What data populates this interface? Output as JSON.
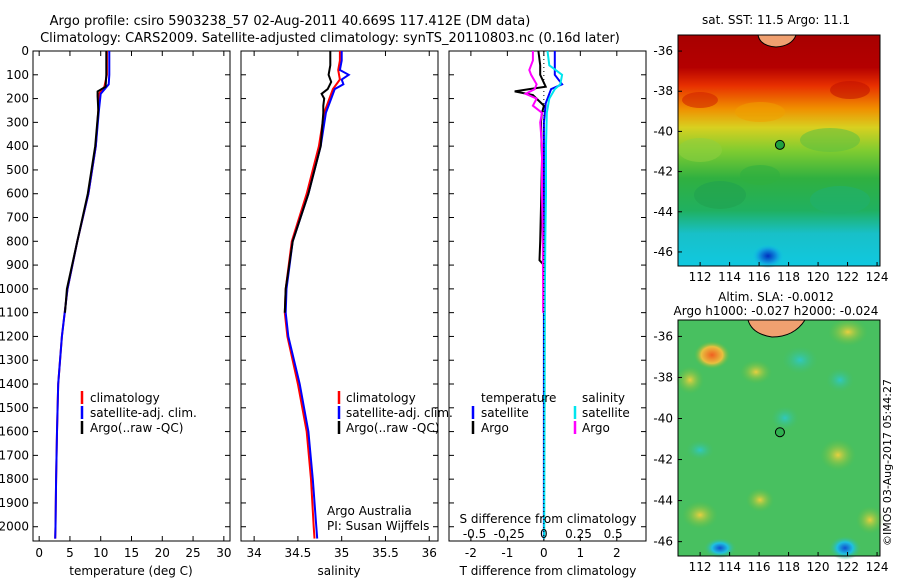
{
  "header": {
    "line1": "Argo profile: csiro 5903238_57 02-Aug-2011 40.669S 117.412E (DM data)",
    "line2": "Climatology: CARS2009. Satellite-adjusted climatology: synTS_20110803.nc (0.16d later)"
  },
  "side_stamp": "©IMOS 03-Aug-2017 05:44:27",
  "colors": {
    "climatology": "#ff0000",
    "satellite": "#0000ff",
    "argo": "#000000",
    "sal_satellite": "#00e5ee",
    "sal_argo": "#ff00ff"
  },
  "chart_data": [
    {
      "type": "line",
      "id": "temperature",
      "xlabel": "temperature (deg C)",
      "xlim": [
        -1,
        31
      ],
      "ylim": [
        2060,
        0
      ],
      "xticks": [
        "0",
        "5",
        "10",
        "15",
        "20",
        "25",
        "30"
      ],
      "xtick_values": [
        0,
        5,
        10,
        15,
        20,
        25,
        30
      ],
      "yticks": [
        "0",
        "100",
        "200",
        "300",
        "400",
        "500",
        "600",
        "700",
        "800",
        "900",
        "1000",
        "1100",
        "1200",
        "1300",
        "1400",
        "1500",
        "1600",
        "1700",
        "1800",
        "1900",
        "2000"
      ],
      "ytick_values": [
        0,
        100,
        200,
        300,
        400,
        500,
        600,
        700,
        800,
        900,
        1000,
        1100,
        1200,
        1300,
        1400,
        1500,
        1600,
        1700,
        1800,
        1900,
        2000
      ],
      "legend": [
        "climatology",
        "satellite-adj. clim.",
        "Argo(..raw -QC)"
      ],
      "series": [
        {
          "name": "climatology",
          "color": "#ff0000",
          "depth": [
            0,
            100,
            150,
            180,
            250,
            400,
            600,
            800,
            1000,
            1200,
            1400,
            1600,
            1800,
            2000,
            2050
          ],
          "values": [
            11.0,
            11.0,
            10.6,
            9.7,
            9.6,
            9.2,
            8.0,
            6.2,
            4.6,
            3.7,
            3.1,
            2.9,
            2.75,
            2.65,
            2.6
          ]
        },
        {
          "name": "satellite-adj. clim.",
          "color": "#0000ff",
          "depth": [
            0,
            100,
            140,
            180,
            250,
            400,
            600,
            800,
            1000,
            1200,
            1400,
            1600,
            1800,
            2000,
            2050
          ],
          "values": [
            11.4,
            11.4,
            11.3,
            10.0,
            9.7,
            9.2,
            8.0,
            6.2,
            4.6,
            3.7,
            3.1,
            2.9,
            2.75,
            2.65,
            2.6
          ]
        },
        {
          "name": "Argo(..raw -QC)",
          "color": "#000000",
          "depth": [
            0,
            100,
            150,
            170,
            190,
            250,
            400,
            600,
            800,
            1000,
            1100
          ],
          "values": [
            10.9,
            10.9,
            10.8,
            9.5,
            9.5,
            9.6,
            9.1,
            7.9,
            6.2,
            4.5,
            4.2
          ]
        }
      ]
    },
    {
      "type": "line",
      "id": "salinity",
      "xlabel": "salinity",
      "xlim": [
        33.85,
        36.1
      ],
      "ylim": [
        2060,
        0
      ],
      "xticks": [
        "34",
        "34.5",
        "35",
        "35.5",
        "36"
      ],
      "xtick_values": [
        34,
        34.5,
        35,
        35.5,
        36
      ],
      "legend": [
        "climatology",
        "satellite-adj. clim.",
        "Argo(..raw -QC)"
      ],
      "annotation": [
        "Argo Australia",
        "PI: Susan Wijffels"
      ],
      "series": [
        {
          "name": "climatology",
          "color": "#ff0000",
          "depth": [
            0,
            40,
            80,
            120,
            160,
            200,
            260,
            400,
            600,
            800,
            1000,
            1100,
            1200,
            1400,
            1600,
            1800,
            2000,
            2050
          ],
          "values": [
            34.98,
            34.98,
            34.96,
            34.98,
            34.9,
            34.86,
            34.8,
            34.74,
            34.6,
            34.43,
            34.36,
            34.35,
            34.38,
            34.5,
            34.6,
            34.65,
            34.68,
            34.69
          ]
        },
        {
          "name": "satellite-adj. clim.",
          "color": "#0000ff",
          "depth": [
            0,
            40,
            80,
            100,
            120,
            140,
            160,
            200,
            260,
            400,
            600,
            800,
            1000,
            1100,
            1200,
            1400,
            1600,
            1800,
            2000,
            2050
          ],
          "values": [
            35.0,
            35.0,
            34.98,
            35.08,
            35.0,
            35.02,
            34.92,
            34.88,
            34.82,
            34.76,
            34.62,
            34.44,
            34.37,
            34.36,
            34.39,
            34.52,
            34.62,
            34.67,
            34.71,
            34.72
          ]
        },
        {
          "name": "Argo(..raw -QC)",
          "color": "#000000",
          "depth": [
            0,
            60,
            100,
            130,
            160,
            180,
            200,
            230,
            260,
            400,
            600,
            800,
            1000,
            1100
          ],
          "values": [
            34.87,
            34.87,
            34.85,
            34.88,
            34.84,
            34.77,
            34.8,
            34.79,
            34.79,
            34.76,
            34.62,
            34.44,
            34.36,
            34.35
          ]
        }
      ]
    },
    {
      "type": "line",
      "id": "difference",
      "xlabel": "T difference from climatology",
      "xlabel_top": "S difference from climatology",
      "xlim": [
        -2.6,
        2.8
      ],
      "ylim": [
        2060,
        0
      ],
      "xticks": [
        "-2",
        "-1",
        "0",
        "1",
        "2"
      ],
      "xtick_values": [
        -2,
        -1,
        0,
        1,
        2
      ],
      "top_ticks": [
        "-0.5",
        "-0.25",
        "0",
        "0.25",
        "0.5"
      ],
      "top_tick_values": [
        -1.9,
        -0.95,
        0,
        0.95,
        1.9
      ],
      "legend_temperature": {
        "title": "temperature",
        "items": [
          "satellite",
          "Argo"
        ]
      },
      "legend_salinity": {
        "title": "salinity",
        "items": [
          "satellite",
          "Argo"
        ]
      },
      "series": [
        {
          "name": "satellite",
          "group": "temperature",
          "color": "#0000ff",
          "depth": [
            0,
            100,
            140,
            160,
            180,
            220,
            300,
            500,
            800,
            1100,
            1300,
            2050
          ],
          "values": [
            0.3,
            0.3,
            0.5,
            0.2,
            0.15,
            0.05,
            0.0,
            0.0,
            0.0,
            0.0,
            0.0,
            0.0
          ]
        },
        {
          "name": "Argo",
          "group": "temperature",
          "color": "#000000",
          "depth": [
            0,
            60,
            100,
            150,
            160,
            170,
            185,
            200,
            230,
            260,
            300,
            450,
            600,
            800,
            880,
            900,
            1000,
            1100
          ],
          "values": [
            -0.15,
            -0.1,
            -0.1,
            0.05,
            -0.4,
            -0.8,
            -0.3,
            -0.2,
            0.0,
            -0.05,
            -0.08,
            -0.05,
            -0.07,
            -0.1,
            -0.12,
            0.0,
            0.0,
            0.02
          ]
        },
        {
          "name": "satellite",
          "group": "salinity",
          "color": "#00e5ee",
          "depth": [
            0,
            60,
            100,
            140,
            160,
            200,
            260,
            400,
            600,
            800,
            1000,
            1500,
            2050
          ],
          "values": [
            0.1,
            0.15,
            0.5,
            0.45,
            0.3,
            0.15,
            0.08,
            0.06,
            0.06,
            0.04,
            0.03,
            0.02,
            0.01
          ]
        },
        {
          "name": "Argo",
          "group": "salinity",
          "color": "#ff00ff",
          "depth": [
            0,
            40,
            80,
            100,
            140,
            160,
            180,
            200,
            230,
            260,
            300,
            400,
            600,
            800,
            1000,
            1100
          ],
          "values": [
            -0.3,
            -0.3,
            -0.4,
            -0.35,
            -0.2,
            -0.25,
            -0.5,
            -0.2,
            -0.3,
            -0.05,
            -0.1,
            -0.05,
            -0.05,
            -0.03,
            -0.02,
            -0.02
          ]
        }
      ]
    },
    {
      "type": "heatmap",
      "id": "sst_map",
      "title": "sat. SST: 11.5 Argo: 11.1",
      "lon_range": [
        110.5,
        124.2
      ],
      "lat_range": [
        -46.7,
        -35.2
      ],
      "xticks": [
        "112",
        "114",
        "116",
        "118",
        "120",
        "122",
        "124"
      ],
      "xtick_values": [
        112,
        114,
        116,
        118,
        120,
        122,
        124
      ],
      "yticks": [
        "-36",
        "-38",
        "-40",
        "-42",
        "-44",
        "-46"
      ],
      "ytick_values": [
        -36,
        -38,
        -40,
        -42,
        -44,
        -46
      ],
      "float_position": [
        117.412,
        -40.669
      ]
    },
    {
      "type": "heatmap",
      "id": "sla_map",
      "title": "Altim. SLA: -0.0012",
      "subtitle": "Argo h1000: -0.027 h2000: -0.024",
      "lon_range": [
        110.5,
        124.2
      ],
      "lat_range": [
        -46.7,
        -35.2
      ],
      "xticks": [
        "112",
        "114",
        "116",
        "118",
        "120",
        "122",
        "124"
      ],
      "xtick_values": [
        112,
        114,
        116,
        118,
        120,
        122,
        124
      ],
      "yticks": [
        "-36",
        "-38",
        "-40",
        "-42",
        "-44",
        "-46"
      ],
      "ytick_values": [
        -36,
        -38,
        -40,
        -42,
        -44,
        -46
      ],
      "float_position": [
        117.412,
        -40.669
      ]
    }
  ]
}
